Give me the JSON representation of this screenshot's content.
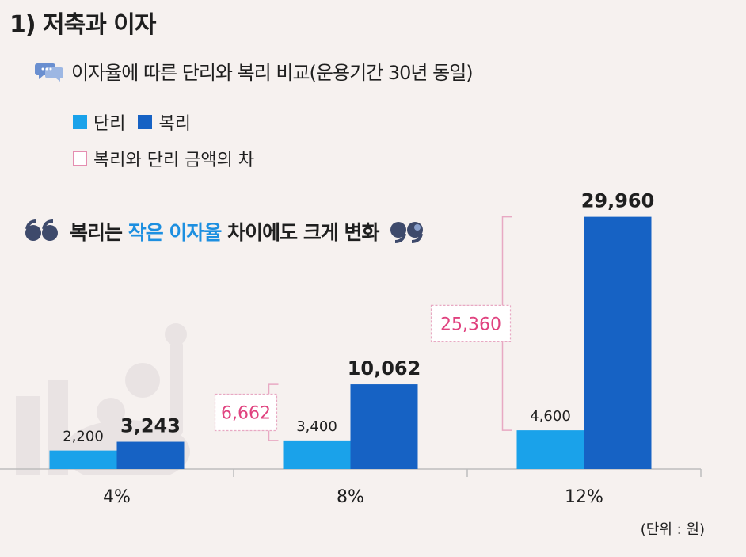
{
  "header": {
    "title": "1) 저축과 이자",
    "subtitle": "이자율에 따른 단리와 복리 비교(운용기간 30년 동일)"
  },
  "legend": {
    "simple": "단리",
    "compound": "복리",
    "difference": "복리와 단리 금액의 차"
  },
  "callout": {
    "part1": "복리는 ",
    "part2": "작은 이자율",
    "part3": " 차이에도 크게 변화"
  },
  "unit_note": "(단위 : 원)",
  "colors": {
    "simple": "#1aa2ea",
    "compound": "#1662c4",
    "difference": "#e0427f",
    "callout_highlight": "#1d8fe0"
  },
  "icons": [
    "speech-bubble-icon",
    "quote-open-icon",
    "quote-close-icon"
  ],
  "chart_data": {
    "type": "bar",
    "categories": [
      "4%",
      "8%",
      "12%"
    ],
    "series": [
      {
        "name": "단리",
        "values": [
          2200,
          3400,
          4600
        ],
        "labels": [
          "2,200",
          "3,400",
          "4,600"
        ]
      },
      {
        "name": "복리",
        "values": [
          3243,
          10062,
          29960
        ],
        "labels": [
          "3,243",
          "10,062",
          "29,960"
        ]
      }
    ],
    "differences": {
      "values": [
        6662,
        25360
      ],
      "labels": [
        "6,662",
        "25,360"
      ],
      "categories": [
        "8%",
        "12%"
      ]
    },
    "ylim": [
      0,
      32000
    ],
    "grid": false,
    "legend_position": "top-left"
  }
}
